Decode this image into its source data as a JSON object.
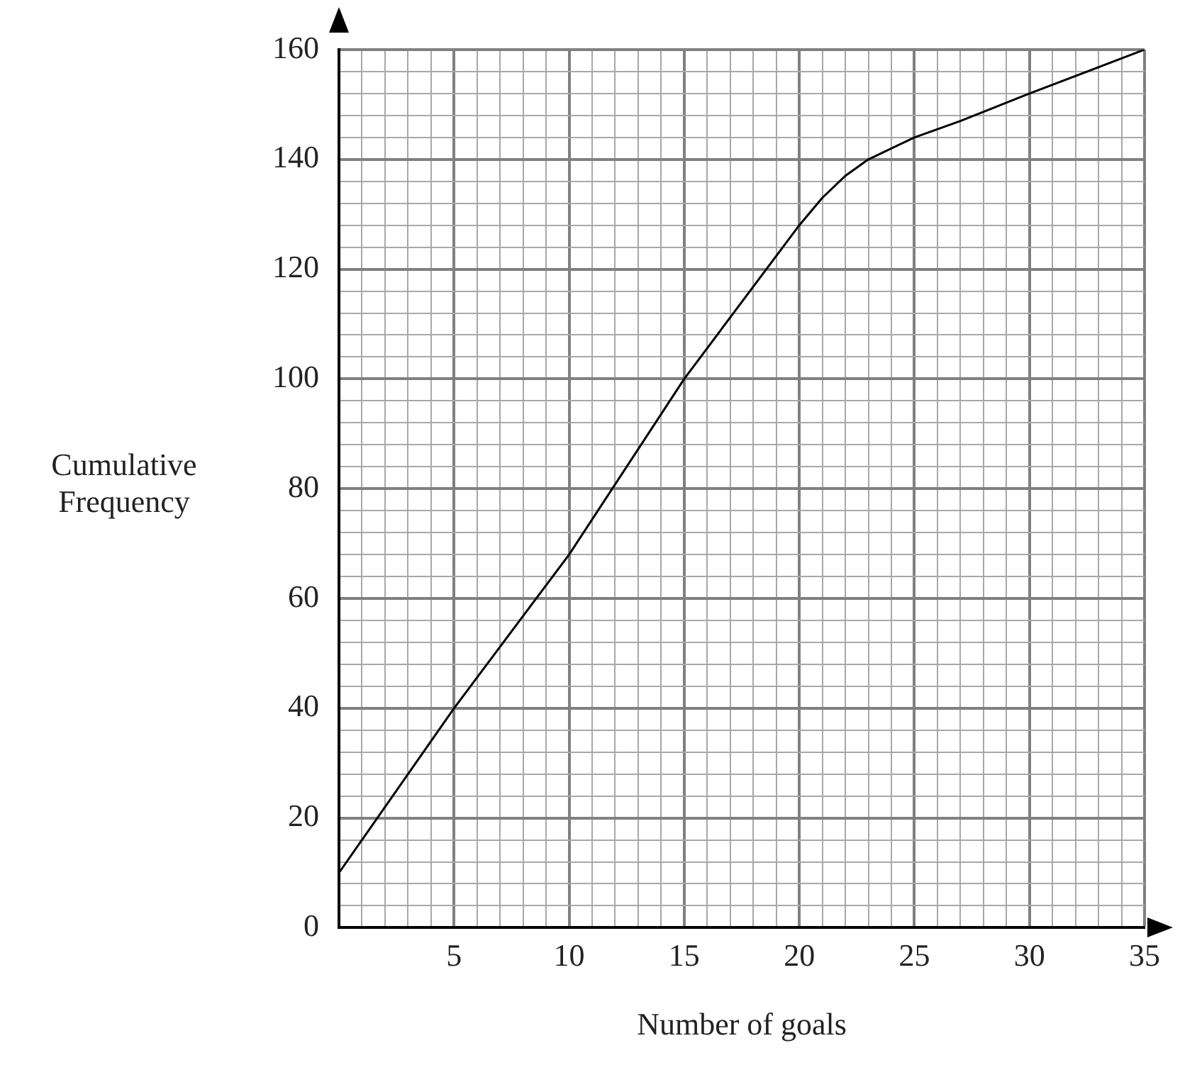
{
  "chart_data": {
    "type": "line",
    "xlabel": "Number of goals",
    "ylabel": "Cumulative Frequency",
    "x": [
      0,
      5,
      10,
      15,
      20,
      21,
      22,
      23,
      25,
      27,
      30,
      35
    ],
    "series": [
      {
        "color": "#000000",
        "values": [
          10,
          40,
          68,
          100,
          128,
          133,
          137,
          140,
          144,
          147,
          152,
          160
        ]
      }
    ],
    "xlim": [
      0,
      35
    ],
    "xticks": [
      {
        "value": 0,
        "label": null
      },
      {
        "value": 1,
        "label": null
      },
      {
        "value": 2,
        "label": null
      },
      {
        "value": 3,
        "label": null
      },
      {
        "value": 4,
        "label": null
      },
      5,
      {
        "value": 6,
        "label": null
      },
      {
        "value": 7,
        "label": null
      },
      {
        "value": 8,
        "label": null
      },
      {
        "value": 9,
        "label": null
      },
      10,
      {
        "value": 11,
        "label": null
      },
      {
        "value": 12,
        "label": null
      },
      {
        "value": 13,
        "label": null
      },
      {
        "value": 14,
        "label": null
      },
      15,
      {
        "value": 16,
        "label": null
      },
      {
        "value": 17,
        "label": null
      },
      {
        "value": 18,
        "label": null
      },
      {
        "value": 19,
        "label": null
      },
      20,
      {
        "value": 21,
        "label": null
      },
      {
        "value": 22,
        "label": null
      },
      {
        "value": 23,
        "label": null
      },
      {
        "value": 24,
        "label": null
      },
      25,
      {
        "value": 26,
        "label": null
      },
      {
        "value": 27,
        "label": null
      },
      {
        "value": 28,
        "label": null
      },
      {
        "value": 29,
        "label": null
      },
      30,
      {
        "value": 31,
        "label": null
      },
      {
        "value": 32,
        "label": null
      },
      {
        "value": 33,
        "label": null
      },
      {
        "value": 34,
        "label": null
      },
      35
    ],
    "ylim": [
      0,
      160
    ],
    "yticks": [
      0,
      {
        "value": 4,
        "label": null
      },
      {
        "value": 8,
        "label": null
      },
      {
        "value": 12,
        "label": null
      },
      {
        "value": 16,
        "label": null
      },
      20,
      {
        "value": 24,
        "label": null
      },
      {
        "value": 28,
        "label": null
      },
      {
        "value": 32,
        "label": null
      },
      {
        "value": 36,
        "label": null
      },
      40,
      {
        "value": 44,
        "label": null
      },
      {
        "value": 48,
        "label": null
      },
      {
        "value": 52,
        "label": null
      },
      {
        "value": 56,
        "label": null
      },
      60,
      {
        "value": 64,
        "label": null
      },
      {
        "value": 68,
        "label": null
      },
      {
        "value": 72,
        "label": null
      },
      {
        "value": 76,
        "label": null
      },
      80,
      {
        "value": 84,
        "label": null
      },
      {
        "value": 88,
        "label": null
      },
      {
        "value": 92,
        "label": null
      },
      {
        "value": 96,
        "label": null
      },
      100,
      {
        "value": 104,
        "label": null
      },
      {
        "value": 108,
        "label": null
      },
      {
        "value": 112,
        "label": null
      },
      {
        "value": 116,
        "label": null
      },
      120,
      {
        "value": 124,
        "label": null
      },
      {
        "value": 128,
        "label": null
      },
      {
        "value": 132,
        "label": null
      },
      {
        "value": 136,
        "label": null
      },
      140,
      {
        "value": 144,
        "label": null
      },
      {
        "value": 148,
        "label": null
      },
      {
        "value": 152,
        "label": null
      },
      {
        "value": 156,
        "label": null
      },
      160
    ],
    "grid": true,
    "legend": false,
    "marker": "none",
    "line_style": "solid"
  }
}
